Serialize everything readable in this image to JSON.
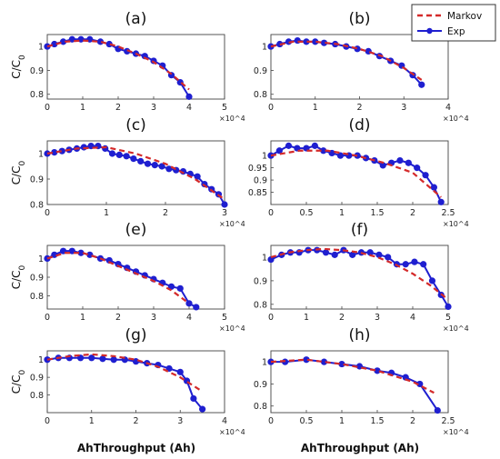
{
  "figure": {
    "xlabel": "AhThroughput (Ah)",
    "legend": {
      "placement": "top-right",
      "entries": [
        "Markov",
        "Exp"
      ]
    },
    "colors": {
      "exp": "#1f1fd0",
      "markov": "#d42a2a"
    }
  },
  "chart_data": [
    {
      "type": "line",
      "panel": "(a)",
      "ylabel": "C/C0",
      "xlim": [
        0,
        5
      ],
      "ylim": [
        0.78,
        1.05
      ],
      "x_multiplier": "×10^4",
      "xticks": [
        "0",
        "1",
        "2",
        "3",
        "4",
        "5"
      ],
      "yticks": [
        "0.8",
        "0.9",
        "1"
      ],
      "series": [
        {
          "name": "Exp",
          "x": [
            0,
            0.2,
            0.45,
            0.7,
            0.95,
            1.2,
            1.5,
            1.75,
            2.0,
            2.25,
            2.5,
            2.75,
            3.0,
            3.25,
            3.5,
            3.75,
            4.0
          ],
          "y": [
            1.0,
            1.01,
            1.02,
            1.03,
            1.03,
            1.03,
            1.02,
            1.01,
            0.99,
            0.98,
            0.97,
            0.96,
            0.94,
            0.92,
            0.88,
            0.85,
            0.79
          ]
        },
        {
          "name": "Markov",
          "x": [
            0,
            0.5,
            1.0,
            1.5,
            2.0,
            2.5,
            3.0,
            3.5,
            4.0
          ],
          "y": [
            1.0,
            1.02,
            1.025,
            1.02,
            1.0,
            0.97,
            0.935,
            0.885,
            0.82
          ]
        }
      ]
    },
    {
      "type": "line",
      "panel": "(b)",
      "ylabel": "",
      "xlim": [
        0,
        4
      ],
      "ylim": [
        0.78,
        1.05
      ],
      "x_multiplier": "×10^4",
      "xticks": [
        "0",
        "1",
        "2",
        "3",
        "4"
      ],
      "yticks": [
        "0.8",
        "0.9",
        "1"
      ],
      "series": [
        {
          "name": "Exp",
          "x": [
            0,
            0.2,
            0.4,
            0.6,
            0.8,
            1.0,
            1.2,
            1.45,
            1.7,
            1.95,
            2.2,
            2.45,
            2.7,
            2.95,
            3.2,
            3.4
          ],
          "y": [
            1.0,
            1.01,
            1.02,
            1.025,
            1.02,
            1.02,
            1.015,
            1.01,
            1.0,
            0.99,
            0.98,
            0.96,
            0.94,
            0.92,
            0.88,
            0.84
          ]
        },
        {
          "name": "Markov",
          "x": [
            0,
            0.5,
            1.0,
            1.5,
            2.0,
            2.5,
            3.0,
            3.4
          ],
          "y": [
            1.0,
            1.02,
            1.02,
            1.01,
            0.99,
            0.96,
            0.91,
            0.86
          ]
        }
      ]
    },
    {
      "type": "line",
      "panel": "(c)",
      "ylabel": "C/C0",
      "xlim": [
        0,
        3
      ],
      "ylim": [
        0.8,
        1.05
      ],
      "x_multiplier": "×10^4",
      "xticks": [
        "0",
        "1",
        "2",
        "3"
      ],
      "yticks": [
        "0.8",
        "0.9",
        "1"
      ],
      "series": [
        {
          "name": "Exp",
          "x": [
            0,
            0.12,
            0.25,
            0.37,
            0.5,
            0.62,
            0.74,
            0.86,
            0.98,
            1.1,
            1.22,
            1.34,
            1.46,
            1.58,
            1.7,
            1.82,
            1.94,
            2.06,
            2.18,
            2.3,
            2.42,
            2.54,
            2.66,
            2.78,
            2.9,
            3.0
          ],
          "y": [
            1.0,
            1.005,
            1.01,
            1.015,
            1.02,
            1.025,
            1.03,
            1.03,
            1.02,
            1.0,
            0.995,
            0.99,
            0.98,
            0.97,
            0.96,
            0.955,
            0.95,
            0.94,
            0.935,
            0.93,
            0.92,
            0.91,
            0.88,
            0.86,
            0.84,
            0.8
          ]
        },
        {
          "name": "Markov",
          "x": [
            0,
            0.5,
            1.0,
            1.5,
            2.0,
            2.5,
            3.0
          ],
          "y": [
            1.0,
            1.02,
            1.025,
            1.0,
            0.96,
            0.9,
            0.82
          ]
        }
      ]
    },
    {
      "type": "line",
      "panel": "(d)",
      "ylabel": "",
      "xlim": [
        0,
        2.5
      ],
      "ylim": [
        0.8,
        1.06
      ],
      "x_multiplier": "×10^4",
      "xticks": [
        "0",
        "0.5",
        "1",
        "1.5",
        "2",
        "2.5"
      ],
      "yticks": [
        "0.85",
        "0.9",
        "0.95",
        "1"
      ],
      "series": [
        {
          "name": "Exp",
          "x": [
            0,
            0.12,
            0.25,
            0.37,
            0.5,
            0.62,
            0.74,
            0.86,
            0.98,
            1.1,
            1.22,
            1.34,
            1.46,
            1.58,
            1.7,
            1.82,
            1.94,
            2.06,
            2.18,
            2.3,
            2.4
          ],
          "y": [
            1.0,
            1.02,
            1.04,
            1.03,
            1.03,
            1.04,
            1.02,
            1.01,
            1.0,
            1.0,
            1.0,
            0.99,
            0.98,
            0.96,
            0.97,
            0.98,
            0.97,
            0.95,
            0.92,
            0.87,
            0.81
          ]
        },
        {
          "name": "Markov",
          "x": [
            0,
            0.4,
            0.8,
            1.2,
            1.6,
            2.0,
            2.4
          ],
          "y": [
            1.0,
            1.02,
            1.02,
            1.0,
            0.97,
            0.93,
            0.83
          ]
        }
      ]
    },
    {
      "type": "line",
      "panel": "(e)",
      "ylabel": "C/C0",
      "xlim": [
        0,
        5
      ],
      "ylim": [
        0.73,
        1.07
      ],
      "x_multiplier": "×10^4",
      "xticks": [
        "0",
        "1",
        "2",
        "3",
        "4",
        "5"
      ],
      "yticks": [
        "0.8",
        "0.9",
        "1"
      ],
      "series": [
        {
          "name": "Exp",
          "x": [
            0,
            0.2,
            0.45,
            0.7,
            0.95,
            1.2,
            1.5,
            1.75,
            2.0,
            2.25,
            2.5,
            2.75,
            3.0,
            3.25,
            3.5,
            3.75,
            4.0,
            4.2
          ],
          "y": [
            1.0,
            1.02,
            1.04,
            1.04,
            1.03,
            1.02,
            1.0,
            0.99,
            0.97,
            0.95,
            0.93,
            0.91,
            0.89,
            0.87,
            0.85,
            0.84,
            0.76,
            0.74
          ]
        },
        {
          "name": "Markov",
          "x": [
            0,
            0.5,
            1.0,
            1.5,
            2.0,
            2.5,
            3.0,
            3.5,
            4.0
          ],
          "y": [
            1.0,
            1.03,
            1.03,
            1.0,
            0.96,
            0.92,
            0.88,
            0.83,
            0.76
          ]
        }
      ]
    },
    {
      "type": "line",
      "panel": "(f)",
      "ylabel": "",
      "xlim": [
        0,
        5
      ],
      "ylim": [
        0.78,
        1.05
      ],
      "x_multiplier": "×10^4",
      "xticks": [
        "0",
        "1",
        "2",
        "3",
        "4",
        "5"
      ],
      "yticks": [
        "0.8",
        "0.9",
        "1"
      ],
      "series": [
        {
          "name": "Exp",
          "x": [
            0,
            0.3,
            0.55,
            0.8,
            1.05,
            1.3,
            1.55,
            1.8,
            2.05,
            2.3,
            2.55,
            2.8,
            3.05,
            3.3,
            3.55,
            3.8,
            4.05,
            4.3,
            4.55,
            4.8,
            5.0
          ],
          "y": [
            0.99,
            1.01,
            1.02,
            1.02,
            1.03,
            1.03,
            1.02,
            1.01,
            1.03,
            1.01,
            1.02,
            1.02,
            1.01,
            1.0,
            0.97,
            0.97,
            0.98,
            0.97,
            0.9,
            0.84,
            0.79
          ]
        },
        {
          "name": "Markov",
          "x": [
            0,
            0.5,
            1.0,
            1.5,
            2.0,
            2.5,
            3.0,
            3.5,
            4.0,
            4.5,
            5.0
          ],
          "y": [
            1.0,
            1.02,
            1.03,
            1.035,
            1.03,
            1.02,
            1.0,
            0.97,
            0.93,
            0.88,
            0.82
          ]
        }
      ]
    },
    {
      "type": "line",
      "panel": "(g)",
      "ylabel": "C/C0",
      "xlim": [
        0,
        4
      ],
      "ylim": [
        0.7,
        1.05
      ],
      "x_multiplier": "×10^4",
      "xticks": [
        "0",
        "1",
        "2",
        "3",
        "4"
      ],
      "yticks": [
        "0.8",
        "0.9",
        "1"
      ],
      "series": [
        {
          "name": "Exp",
          "x": [
            0,
            0.25,
            0.5,
            0.75,
            1.0,
            1.25,
            1.5,
            1.75,
            2.0,
            2.25,
            2.5,
            2.75,
            3.0,
            3.15,
            3.3,
            3.5
          ],
          "y": [
            1.0,
            1.01,
            1.01,
            1.01,
            1.01,
            1.005,
            1.0,
            1.0,
            0.99,
            0.98,
            0.97,
            0.95,
            0.93,
            0.88,
            0.78,
            0.72
          ]
        },
        {
          "name": "Markov",
          "x": [
            0,
            0.5,
            1.0,
            1.5,
            2.0,
            2.5,
            3.0,
            3.5
          ],
          "y": [
            1.0,
            1.02,
            1.03,
            1.02,
            1.0,
            0.96,
            0.9,
            0.82
          ]
        }
      ]
    },
    {
      "type": "line",
      "panel": "(h)",
      "ylabel": "",
      "xlim": [
        0,
        2.5
      ],
      "ylim": [
        0.77,
        1.05
      ],
      "x_multiplier": "×10^4",
      "xticks": [
        "0",
        "0.5",
        "1",
        "1.5",
        "2",
        "2.5"
      ],
      "yticks": [
        "0.8",
        "0.9",
        "1"
      ],
      "series": [
        {
          "name": "Exp",
          "x": [
            0,
            0.2,
            0.5,
            0.75,
            1.0,
            1.25,
            1.5,
            1.7,
            1.9,
            2.1,
            2.35
          ],
          "y": [
            1.0,
            1.0,
            1.01,
            1.0,
            0.99,
            0.98,
            0.96,
            0.95,
            0.93,
            0.9,
            0.78
          ]
        },
        {
          "name": "Markov",
          "x": [
            0,
            0.5,
            1.0,
            1.5,
            2.0,
            2.3
          ],
          "y": [
            1.0,
            1.01,
            0.99,
            0.96,
            0.91,
            0.86
          ]
        }
      ]
    }
  ]
}
